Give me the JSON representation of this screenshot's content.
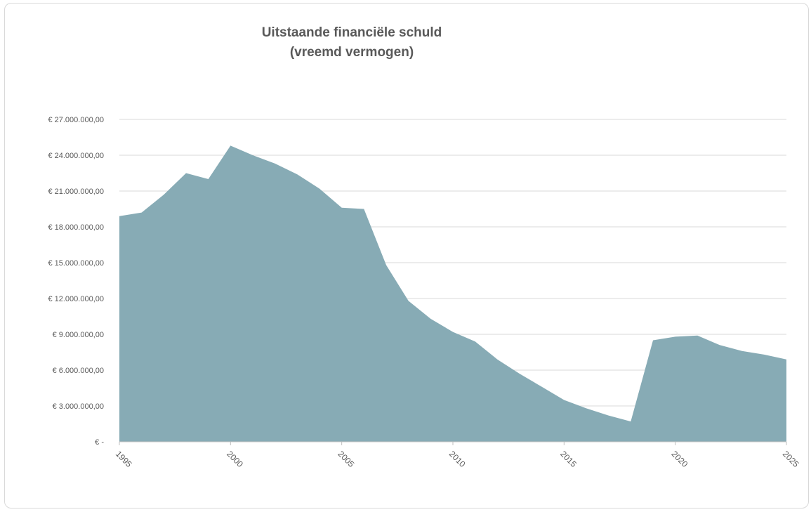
{
  "chart_data": {
    "type": "area",
    "title_lines": [
      "Uitstaande financiële schuld",
      "(vreemd vermogen)"
    ],
    "x_ticks": [
      "1995",
      "2000",
      "2005",
      "2010",
      "2015",
      "2020",
      "2025"
    ],
    "y_tick_labels": [
      "€ -",
      "€ 3.000.000,00",
      "€ 6.000.000,00",
      "€ 9.000.000,00",
      "€ 12.000.000,00",
      "€ 15.000.000,00",
      "€ 18.000.000,00",
      "€ 21.000.000,00",
      "€ 24.000.000,00",
      "€ 27.000.000,00"
    ],
    "xlim": [
      1995,
      2025
    ],
    "ylim": [
      0,
      27000000
    ],
    "grid": true,
    "color": "#87abb5",
    "series": [
      {
        "x": [
          1995,
          1996,
          1997,
          1998,
          1999,
          2000,
          2001,
          2002,
          2003,
          2004,
          2005,
          2006,
          2007,
          2008,
          2009,
          2010,
          2011,
          2012,
          2013,
          2014,
          2015,
          2016,
          2017,
          2018,
          2019,
          2020,
          2021,
          2022,
          2023,
          2024,
          2025
        ],
        "values": [
          18900000,
          19200000,
          20700000,
          22500000,
          22000000,
          24800000,
          24000000,
          23300000,
          22400000,
          21200000,
          19600000,
          19500000,
          14800000,
          11800000,
          10300000,
          9200000,
          8400000,
          6900000,
          5700000,
          4600000,
          3500000,
          2800000,
          2200000,
          1700000,
          8500000,
          8800000,
          8900000,
          8100000,
          7600000,
          7300000,
          6900000
        ]
      }
    ]
  }
}
